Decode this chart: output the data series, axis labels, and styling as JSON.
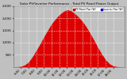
{
  "title": "Solar PV/Inverter Performance - Total PV Panel Power Output",
  "background_color": "#c0c0c0",
  "plot_bg_color": "#c0c0c0",
  "bar_color": "#dd0000",
  "grid_color": "#ffffff",
  "legend_labels": [
    "PV Panel Pwr (W)",
    "Inverter Pwr (W)"
  ],
  "legend_colors": [
    "#cc0000",
    "#0000cc"
  ],
  "y_max": 2500,
  "y_ticks": [
    500,
    1000,
    1500,
    2000,
    2500
  ],
  "y_tick_labels": [
    "500",
    "1,000",
    "1,500",
    "2,000",
    "2,500"
  ],
  "x_labels": [
    "6:00",
    "7:00",
    "8:00",
    "9:00",
    "10:00",
    "11:00",
    "12:00",
    "13:00",
    "14:00",
    "15:00",
    "16:00",
    "17:00",
    "18:00"
  ],
  "hours": [
    5,
    5.5,
    6,
    6.5,
    7,
    7.5,
    8,
    8.5,
    9,
    9.5,
    10,
    10.5,
    11,
    11.5,
    12,
    12.5,
    13,
    13.5,
    14,
    14.5,
    15,
    15.5,
    16,
    16.5,
    17,
    17.5,
    18,
    18.5,
    19
  ],
  "pv_power": [
    0,
    5,
    20,
    80,
    200,
    420,
    680,
    950,
    1250,
    1520,
    1780,
    1980,
    2150,
    2280,
    2350,
    2310,
    2200,
    2050,
    1870,
    1650,
    1380,
    1100,
    800,
    530,
    300,
    130,
    40,
    10,
    0
  ]
}
